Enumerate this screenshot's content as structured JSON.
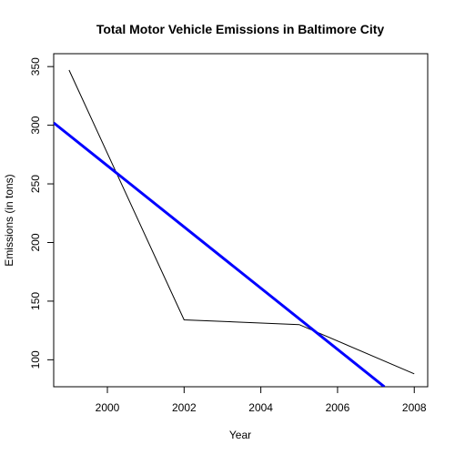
{
  "chart_data": {
    "type": "line",
    "title": "Total Motor Vehicle Emissions in Baltimore City",
    "xlabel": "Year",
    "ylabel": "Emissions (in tons)",
    "xlim": [
      1998.6,
      2008.35
    ],
    "ylim": [
      77,
      361
    ],
    "x_ticks": [
      2000,
      2002,
      2004,
      2006,
      2008
    ],
    "y_ticks": [
      100,
      150,
      200,
      250,
      300,
      350
    ],
    "grid": false,
    "legend": "none",
    "series": [
      {
        "color": "#000000",
        "points": [
          {
            "x": 1999,
            "y": 347
          },
          {
            "x": 2002,
            "y": 134
          },
          {
            "x": 2005,
            "y": 130
          },
          {
            "x": 2008,
            "y": 88
          }
        ]
      },
      {
        "color": "#0000ff",
        "points": [
          {
            "x": 1998.6,
            "y": 302
          },
          {
            "x": 2007.22,
            "y": 77
          }
        ]
      }
    ]
  }
}
